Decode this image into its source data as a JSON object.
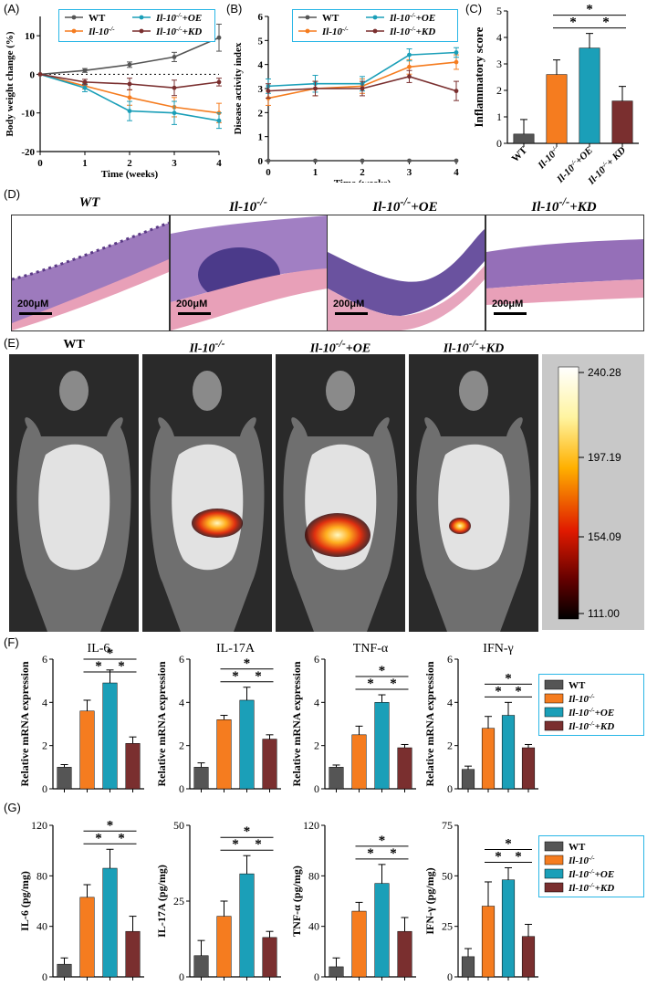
{
  "colors": {
    "WT": "#555555",
    "KO": "#f57c1f",
    "OE": "#1b9fb8",
    "KD": "#7a2f2f",
    "legend_border": "#29b6e6"
  },
  "panel_labels": {
    "A": "(A)",
    "B": "(B)",
    "C": "(C)",
    "D": "(D)",
    "E": "(E)",
    "F": "(F)",
    "G": "(G)"
  },
  "groups": {
    "WT": "WT",
    "KO": "Il-10",
    "KO_sup": "-/-",
    "OE_suffix": "+OE",
    "KD_suffix": "+KD",
    "KD_suffix_c": "+ KD"
  },
  "star": "*",
  "chart_data": [
    {
      "id": "A",
      "type": "line",
      "xlabel": "Time (weeks)",
      "ylabel": "Body weight change (%)",
      "xlim": [
        0,
        4
      ],
      "ylim": [
        -20,
        15
      ],
      "x": [
        0,
        1,
        2,
        3,
        4
      ],
      "x_ticks": [
        "0",
        "1",
        "2",
        "3",
        "4"
      ],
      "y_ticks": [
        "-20",
        "-10",
        "0",
        "10"
      ],
      "y_tick_values": [
        -20,
        -10,
        0,
        10
      ],
      "reference_line": 0,
      "series": [
        {
          "name": "WT",
          "values": [
            0,
            1,
            2.5,
            4.5,
            9.5
          ],
          "err": [
            0,
            0.5,
            0.7,
            1.2,
            3.5
          ]
        },
        {
          "name": "Il-10-/-",
          "values": [
            0,
            -3,
            -6,
            -8.5,
            -10
          ],
          "err": [
            0,
            0.8,
            2,
            2.5,
            2.5
          ]
        },
        {
          "name": "Il-10-/-+OE",
          "values": [
            0,
            -3.5,
            -9.5,
            -10,
            -12
          ],
          "err": [
            0,
            1,
            2.5,
            3,
            2
          ]
        },
        {
          "name": "Il-10-/-+KD",
          "values": [
            0,
            -2,
            -2.5,
            -3.5,
            -2
          ],
          "err": [
            0,
            0.7,
            1.5,
            2,
            1
          ]
        }
      ]
    },
    {
      "id": "B",
      "type": "line",
      "xlabel": "Time (weeks)",
      "ylabel": "Disease activity index",
      "xlim": [
        0,
        4
      ],
      "ylim": [
        0,
        6
      ],
      "x": [
        0,
        1,
        2,
        3,
        4
      ],
      "x_ticks": [
        "0",
        "1",
        "2",
        "3",
        "4"
      ],
      "y_ticks": [
        "0",
        "1",
        "2",
        "3",
        "4",
        "5",
        "6"
      ],
      "y_tick_values": [
        0,
        1,
        2,
        3,
        4,
        5,
        6
      ],
      "series": [
        {
          "name": "WT",
          "values": [
            0,
            0,
            0,
            0,
            0
          ],
          "err": [
            0,
            0,
            0,
            0,
            0
          ]
        },
        {
          "name": "Il-10-/-",
          "values": [
            2.6,
            3.0,
            3.1,
            3.9,
            4.1
          ],
          "err": [
            0.3,
            0.3,
            0.3,
            0.3,
            0.3
          ]
        },
        {
          "name": "Il-10-/-+OE",
          "values": [
            3.1,
            3.2,
            3.2,
            4.4,
            4.5
          ],
          "err": [
            0.3,
            0.35,
            0.3,
            0.25,
            0.2
          ]
        },
        {
          "name": "Il-10-/-+KD",
          "values": [
            2.9,
            3.0,
            3.0,
            3.5,
            2.9
          ],
          "err": [
            0.3,
            0.3,
            0.3,
            0.25,
            0.4
          ]
        }
      ]
    },
    {
      "id": "C",
      "type": "bar",
      "ylabel": "Inflammatory score",
      "ylim": [
        0,
        5
      ],
      "y_ticks": [
        "0",
        "1",
        "2",
        "3",
        "4",
        "5"
      ],
      "y_tick_values": [
        0,
        1,
        2,
        3,
        4,
        5
      ],
      "values": [
        0.35,
        2.6,
        3.6,
        1.6
      ],
      "err": [
        0.55,
        0.55,
        0.55,
        0.55
      ]
    },
    {
      "id": "F1",
      "type": "bar",
      "title": "IL-6",
      "ylabel": "Relative mRNA expression",
      "ylim": [
        0,
        6
      ],
      "y_ticks": [
        "0",
        "2",
        "4",
        "6"
      ],
      "y_tick_values": [
        0,
        2,
        4,
        6
      ],
      "values": [
        1.0,
        3.6,
        4.9,
        2.1
      ],
      "err": [
        0.12,
        0.5,
        0.6,
        0.3
      ]
    },
    {
      "id": "F2",
      "type": "bar",
      "title": "IL-17A",
      "ylabel": "Relative mRNA expression",
      "ylim": [
        0,
        6
      ],
      "y_ticks": [
        "0",
        "2",
        "4",
        "6"
      ],
      "y_tick_values": [
        0,
        2,
        4,
        6
      ],
      "values": [
        1.0,
        3.2,
        4.1,
        2.3
      ],
      "err": [
        0.2,
        0.2,
        0.6,
        0.2
      ]
    },
    {
      "id": "F3",
      "type": "bar",
      "title": "TNF-α",
      "ylabel": "Relative mRNA expression",
      "ylim": [
        0,
        6
      ],
      "y_ticks": [
        "0",
        "2",
        "4",
        "6"
      ],
      "y_tick_values": [
        0,
        2,
        4,
        6
      ],
      "values": [
        1.0,
        2.5,
        4.0,
        1.9
      ],
      "err": [
        0.1,
        0.4,
        0.35,
        0.15
      ]
    },
    {
      "id": "F4",
      "type": "bar",
      "title": "IFN-γ",
      "ylabel": "Relative mRNA expression",
      "ylim": [
        0,
        6
      ],
      "y_ticks": [
        "0",
        "2",
        "4",
        "6"
      ],
      "y_tick_values": [
        0,
        2,
        4,
        6
      ],
      "values": [
        0.9,
        2.8,
        3.4,
        1.9
      ],
      "err": [
        0.15,
        0.55,
        0.6,
        0.15
      ]
    },
    {
      "id": "G1",
      "type": "bar",
      "ylabel": "IL-6  (pg/mg)",
      "ylim": [
        0,
        120
      ],
      "y_ticks": [
        "0",
        "40",
        "80",
        "120"
      ],
      "y_tick_values": [
        0,
        40,
        80,
        120
      ],
      "values": [
        10,
        63,
        86,
        36
      ],
      "err": [
        5,
        10,
        15,
        12
      ]
    },
    {
      "id": "G2",
      "type": "bar",
      "ylabel": "IL-17A (pg/mg)",
      "ylim": [
        0,
        50
      ],
      "y_ticks": [
        "0",
        "25",
        "50"
      ],
      "y_tick_values": [
        0,
        25,
        50
      ],
      "values": [
        7,
        20,
        34,
        13
      ],
      "err": [
        5,
        5,
        6,
        2
      ]
    },
    {
      "id": "G3",
      "type": "bar",
      "ylabel": "TNF-α  (pg/mg)",
      "ylim": [
        0,
        120
      ],
      "y_ticks": [
        "0",
        "40",
        "80",
        "120"
      ],
      "y_tick_values": [
        0,
        40,
        80,
        120
      ],
      "values": [
        8,
        52,
        74,
        36
      ],
      "err": [
        7,
        7,
        15,
        11
      ]
    },
    {
      "id": "G4",
      "type": "bar",
      "ylabel": "IFN-γ  (pg/mg)",
      "ylim": [
        0,
        75
      ],
      "y_ticks": [
        "0",
        "25",
        "50",
        "75"
      ],
      "y_tick_values": [
        0,
        25,
        50,
        75
      ],
      "values": [
        10,
        35,
        48,
        20
      ],
      "err": [
        4,
        12,
        6,
        6
      ]
    }
  ],
  "micrographs": {
    "scale": "200μM"
  },
  "imaging": {
    "colorbar_ticks": [
      "240.28",
      "197.19",
      "154.09",
      "111.00"
    ]
  }
}
